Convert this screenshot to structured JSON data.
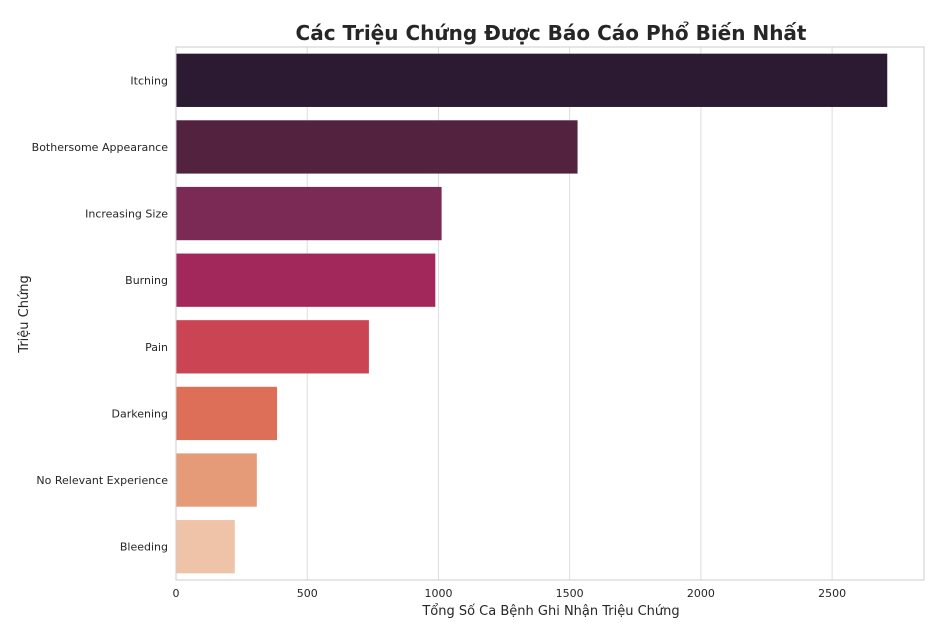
{
  "chart_data": {
    "type": "bar",
    "orientation": "horizontal",
    "title": "Các Triệu Chứng Được Báo Cáo Phổ Biến Nhất",
    "xlabel": "Tổng Số Ca Bệnh Ghi Nhận Triệu Chứng",
    "ylabel": "Triệu Chứng",
    "categories": [
      "Itching",
      "Bothersome Appearance",
      "Increasing Size",
      "Burning",
      "Pain",
      "Darkening",
      "No Relevant Experience",
      "Bleeding"
    ],
    "values": [
      2710,
      1530,
      1012,
      988,
      735,
      385,
      308,
      224
    ],
    "colors": [
      "#2b1a31",
      "#52223f",
      "#7a2a55",
      "#a2285c",
      "#cb4453",
      "#dd6f59",
      "#e69b78",
      "#efc3a8"
    ],
    "xlim": [
      0,
      2850
    ],
    "xticks": [
      0,
      500,
      1000,
      1500,
      2000,
      2500
    ],
    "grid": true,
    "legend": "none"
  }
}
